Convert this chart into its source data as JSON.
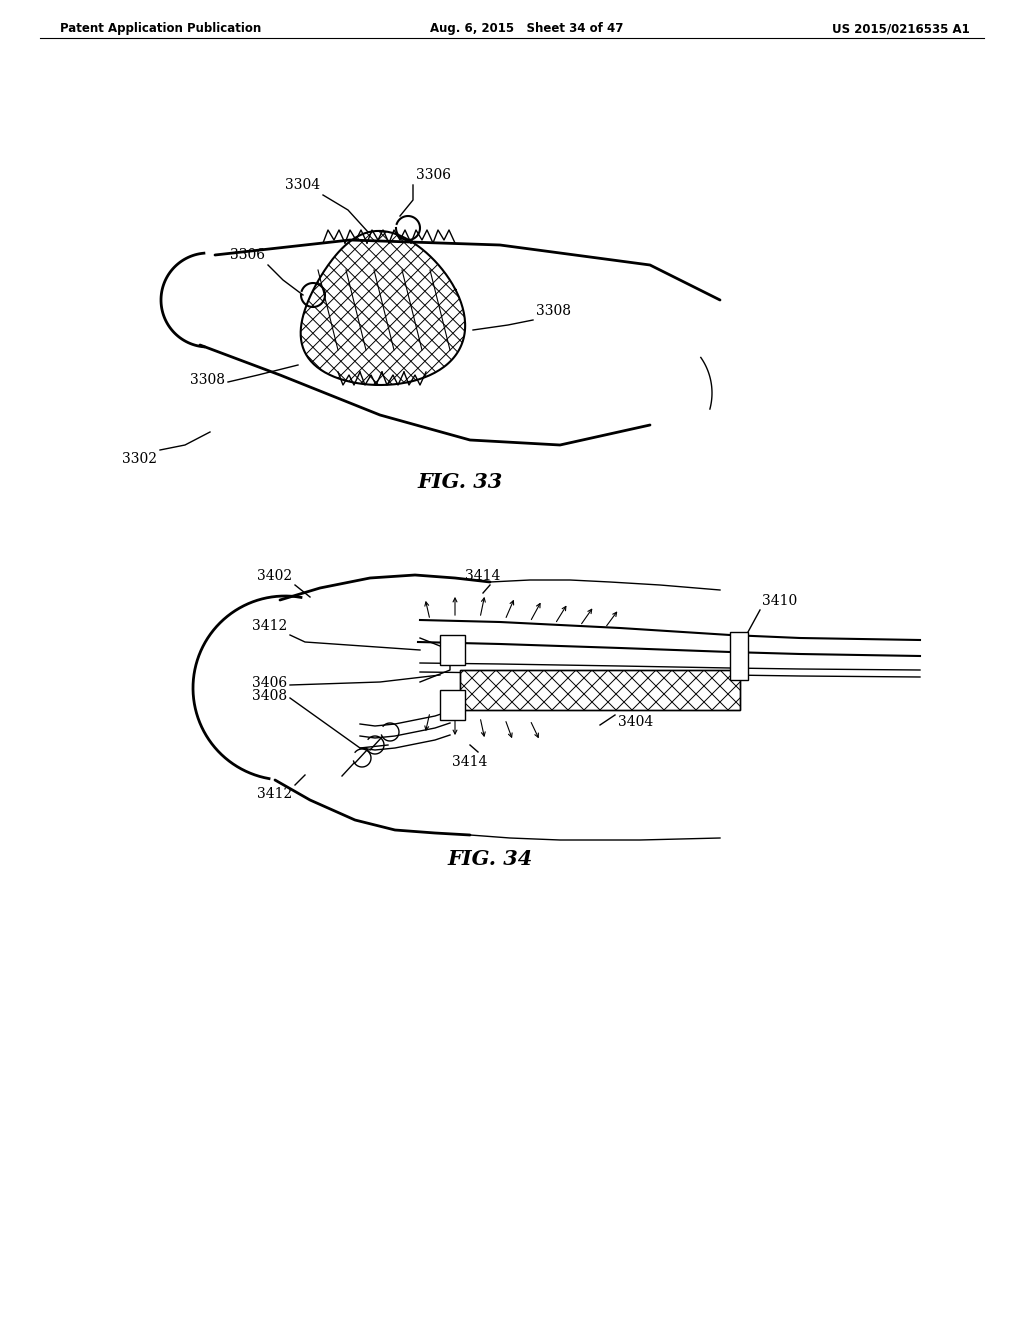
{
  "background_color": "#ffffff",
  "line_color": "#000000",
  "header": {
    "left": "Patent Application Publication",
    "center": "Aug. 6, 2015   Sheet 34 of 47",
    "right": "US 2015/0216535 A1"
  }
}
